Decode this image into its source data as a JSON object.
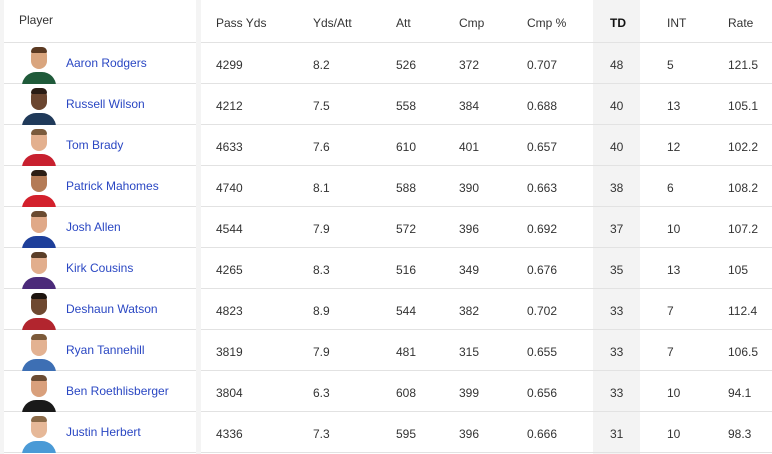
{
  "header": {
    "player": "Player",
    "columns": [
      "Pass Yds",
      "Yds/Att",
      "Att",
      "Cmp",
      "Cmp %",
      "TD",
      "INT",
      "Rate"
    ]
  },
  "rows": [
    {
      "name": "Aaron Rodgers",
      "jersey": "#1f5a3a",
      "skin": "#d9a57e",
      "hair": "#5b3a22",
      "stats": [
        "4299",
        "8.2",
        "526",
        "372",
        "0.707",
        "48",
        "5",
        "121.5"
      ]
    },
    {
      "name": "Russell Wilson",
      "jersey": "#203a5a",
      "skin": "#6b4630",
      "hair": "#2a1c14",
      "stats": [
        "4212",
        "7.5",
        "558",
        "384",
        "0.688",
        "40",
        "13",
        "105.1"
      ]
    },
    {
      "name": "Tom Brady",
      "jersey": "#c8202f",
      "skin": "#e3b08f",
      "hair": "#7a5a3c",
      "stats": [
        "4633",
        "7.6",
        "610",
        "401",
        "0.657",
        "40",
        "12",
        "102.2"
      ]
    },
    {
      "name": "Patrick Mahomes",
      "jersey": "#d3202c",
      "skin": "#b47b56",
      "hair": "#2b1d14",
      "stats": [
        "4740",
        "8.1",
        "588",
        "390",
        "0.663",
        "38",
        "6",
        "108.2"
      ]
    },
    {
      "name": "Josh Allen",
      "jersey": "#1e3f9a",
      "skin": "#e0a988",
      "hair": "#6a4a30",
      "stats": [
        "4544",
        "7.9",
        "572",
        "396",
        "0.692",
        "37",
        "10",
        "107.2"
      ]
    },
    {
      "name": "Kirk Cousins",
      "jersey": "#4b2a7a",
      "skin": "#e2ae8d",
      "hair": "#5a3e28",
      "stats": [
        "4265",
        "8.3",
        "516",
        "349",
        "0.676",
        "35",
        "13",
        "105"
      ]
    },
    {
      "name": "Deshaun Watson",
      "jersey": "#b2252e",
      "skin": "#6e4830",
      "hair": "#1e1510",
      "stats": [
        "4823",
        "8.9",
        "544",
        "382",
        "0.702",
        "33",
        "7",
        "112.4"
      ]
    },
    {
      "name": "Ryan Tannehill",
      "jersey": "#3d6fb4",
      "skin": "#e3b292",
      "hair": "#7c5a3a",
      "stats": [
        "3819",
        "7.9",
        "481",
        "315",
        "0.655",
        "33",
        "7",
        "106.5"
      ]
    },
    {
      "name": "Ben Roethlisberger",
      "jersey": "#1a1a1a",
      "skin": "#d9a07c",
      "hair": "#6b4c33",
      "stats": [
        "3804",
        "6.3",
        "608",
        "399",
        "0.656",
        "33",
        "10",
        "94.1"
      ]
    },
    {
      "name": "Justin Herbert",
      "jersey": "#4a9ad6",
      "skin": "#e6b898",
      "hair": "#8a6a48",
      "stats": [
        "4336",
        "7.3",
        "595",
        "396",
        "0.666",
        "31",
        "10",
        "98.3"
      ]
    }
  ]
}
